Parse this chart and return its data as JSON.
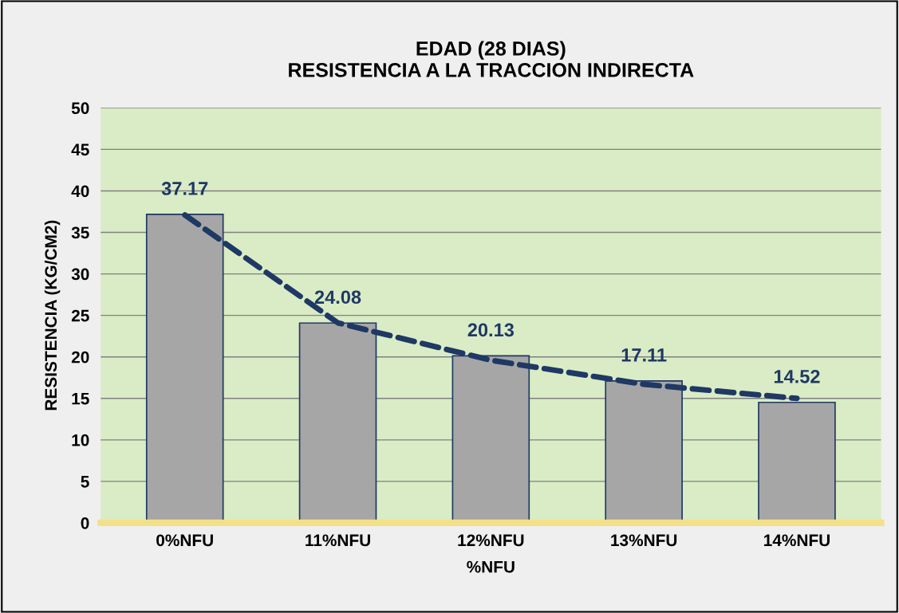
{
  "chart_data": {
    "type": "bar",
    "title": "EDAD (28 DIAS)\nRESISTENCIA A LA TRACCION INDIRECTA",
    "xlabel": "%NFU",
    "ylabel": "RESISTENCIA (KG/CM2)",
    "categories": [
      "0%NFU",
      "11%NFU",
      "12%NFU",
      "13%NFU",
      "14%NFU"
    ],
    "series": [
      {
        "color": "#a6a6a6",
        "values": [
          37.17,
          24.08,
          20.13,
          17.11,
          14.52
        ],
        "data_labels": true
      },
      {
        "type": "line",
        "color": "#1f3864",
        "values": [
          37.1,
          24.1,
          19.6,
          16.7,
          15.0
        ],
        "line_style": "dashed"
      }
    ],
    "ylim": [
      0,
      50
    ],
    "yticks": [
      0,
      5,
      10,
      15,
      20,
      25,
      30,
      35,
      40,
      45,
      50
    ],
    "grid": "y",
    "legend": false
  }
}
